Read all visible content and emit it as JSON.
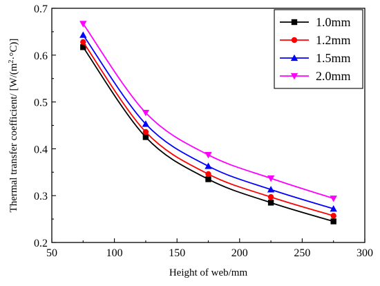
{
  "chart_data": {
    "type": "line",
    "title": "",
    "xlabel": "Height of web/mm",
    "ylabel_prefix": "Thermal transfer coefficient/ [W/(m",
    "ylabel_sup": "2",
    "ylabel_suffix": "·°C)]",
    "xlim": [
      50,
      300
    ],
    "ylim": [
      0.2,
      0.7
    ],
    "xticks": [
      50,
      100,
      150,
      200,
      250,
      300
    ],
    "yticks": [
      0.2,
      0.3,
      0.4,
      0.5,
      0.6,
      0.7
    ],
    "x": [
      75,
      125,
      175,
      225,
      275
    ],
    "grid": false,
    "legend_position": "top-right",
    "series": [
      {
        "name": "1.0mm",
        "values": [
          0.617,
          0.425,
          0.335,
          0.285,
          0.245
        ],
        "color": "#000000",
        "marker": "square"
      },
      {
        "name": "1.2mm",
        "values": [
          0.628,
          0.436,
          0.346,
          0.297,
          0.257
        ],
        "color": "#ff0000",
        "marker": "circle"
      },
      {
        "name": "1.5mm",
        "values": [
          0.643,
          0.453,
          0.363,
          0.313,
          0.272
        ],
        "color": "#0000ff",
        "marker": "triangle-up"
      },
      {
        "name": "2.0mm",
        "values": [
          0.667,
          0.477,
          0.387,
          0.337,
          0.294
        ],
        "color": "#ff00ff",
        "marker": "triangle-down"
      }
    ]
  }
}
